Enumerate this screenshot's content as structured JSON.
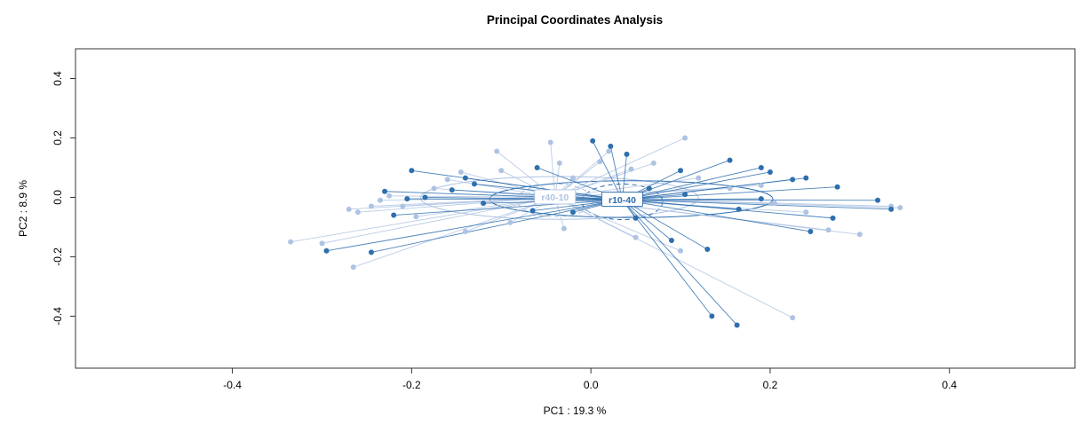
{
  "chart_data": {
    "type": "scatter",
    "title": "Principal Coordinates Analysis",
    "xlabel": "PC1 :  19.3 %",
    "ylabel": "PC2 :  8.9 %",
    "xlim": [
      -0.575,
      0.54
    ],
    "ylim": [
      -0.575,
      0.5
    ],
    "xticks": [
      -0.4,
      -0.2,
      0.0,
      0.2,
      0.4
    ],
    "xtick_labels": [
      "-0.4",
      "-0.2",
      "0.0",
      "0.2",
      "0.4"
    ],
    "yticks": [
      -0.4,
      -0.2,
      0.0,
      0.2,
      0.4
    ],
    "ytick_labels": [
      "-0.4",
      "-0.2",
      "0.0",
      "0.2",
      "0.4"
    ],
    "grid": false,
    "legend": "none",
    "box_color": "#333333",
    "groups": [
      {
        "name": "r40-10",
        "color": "#aec3e3",
        "centroid": [
          -0.04,
          0.0
        ],
        "ellipses": [
          {
            "cx": -0.035,
            "cy": -0.002,
            "rx": 0.155,
            "ry": 0.072,
            "dashed": false
          },
          {
            "cx": -0.04,
            "cy": -0.01,
            "rx": 0.042,
            "ry": 0.055,
            "dashed": true
          }
        ],
        "points": [
          [
            -0.335,
            -0.15
          ],
          [
            -0.3,
            -0.155
          ],
          [
            -0.265,
            -0.235
          ],
          [
            -0.27,
            -0.04
          ],
          [
            -0.26,
            -0.05
          ],
          [
            -0.245,
            -0.03
          ],
          [
            -0.235,
            -0.01
          ],
          [
            -0.225,
            0.005
          ],
          [
            -0.21,
            -0.03
          ],
          [
            -0.195,
            -0.065
          ],
          [
            -0.175,
            0.03
          ],
          [
            -0.16,
            0.06
          ],
          [
            -0.145,
            0.085
          ],
          [
            -0.14,
            -0.115
          ],
          [
            -0.105,
            0.155
          ],
          [
            -0.1,
            0.09
          ],
          [
            -0.09,
            -0.085
          ],
          [
            -0.045,
            0.185
          ],
          [
            -0.035,
            0.115
          ],
          [
            -0.03,
            -0.105
          ],
          [
            -0.02,
            0.065
          ],
          [
            0.01,
            0.12
          ],
          [
            0.02,
            0.155
          ],
          [
            0.045,
            0.095
          ],
          [
            0.05,
            -0.135
          ],
          [
            0.07,
            0.115
          ],
          [
            0.1,
            -0.18
          ],
          [
            0.105,
            0.2
          ],
          [
            0.12,
            0.065
          ],
          [
            0.155,
            0.03
          ],
          [
            0.19,
            0.04
          ],
          [
            0.205,
            -0.02
          ],
          [
            0.225,
            -0.405
          ],
          [
            0.24,
            -0.05
          ],
          [
            0.265,
            -0.11
          ],
          [
            0.3,
            -0.125
          ],
          [
            0.335,
            -0.03
          ],
          [
            0.345,
            -0.035
          ]
        ]
      },
      {
        "name": "r10-40",
        "color": "#2e6fae",
        "centroid": [
          0.035,
          -0.008
        ],
        "ellipses": [
          {
            "cx": 0.045,
            "cy": -0.006,
            "rx": 0.158,
            "ry": 0.062,
            "dashed": false
          },
          {
            "cx": 0.035,
            "cy": -0.015,
            "rx": 0.045,
            "ry": 0.06,
            "dashed": true
          }
        ],
        "points": [
          [
            0.002,
            0.19
          ],
          [
            0.022,
            0.172
          ],
          [
            0.04,
            0.145
          ],
          [
            -0.06,
            0.1
          ],
          [
            -0.14,
            0.065
          ],
          [
            -0.2,
            0.09
          ],
          [
            -0.23,
            0.02
          ],
          [
            -0.205,
            -0.005
          ],
          [
            -0.185,
            0.0
          ],
          [
            -0.155,
            0.025
          ],
          [
            -0.13,
            0.045
          ],
          [
            -0.12,
            -0.02
          ],
          [
            -0.22,
            -0.06
          ],
          [
            -0.245,
            -0.185
          ],
          [
            -0.295,
            -0.18
          ],
          [
            -0.065,
            -0.045
          ],
          [
            -0.02,
            -0.05
          ],
          [
            0.05,
            -0.07
          ],
          [
            0.065,
            0.03
          ],
          [
            0.09,
            -0.145
          ],
          [
            0.105,
            0.01
          ],
          [
            0.1,
            0.09
          ],
          [
            0.13,
            -0.175
          ],
          [
            0.135,
            -0.4
          ],
          [
            0.163,
            -0.43
          ],
          [
            0.155,
            0.125
          ],
          [
            0.165,
            -0.04
          ],
          [
            0.19,
            0.1
          ],
          [
            0.19,
            -0.005
          ],
          [
            0.2,
            0.085
          ],
          [
            0.225,
            0.06
          ],
          [
            0.24,
            0.065
          ],
          [
            0.245,
            -0.115
          ],
          [
            0.27,
            -0.07
          ],
          [
            0.275,
            0.035
          ],
          [
            0.32,
            -0.01
          ],
          [
            0.335,
            -0.04
          ]
        ]
      }
    ]
  }
}
